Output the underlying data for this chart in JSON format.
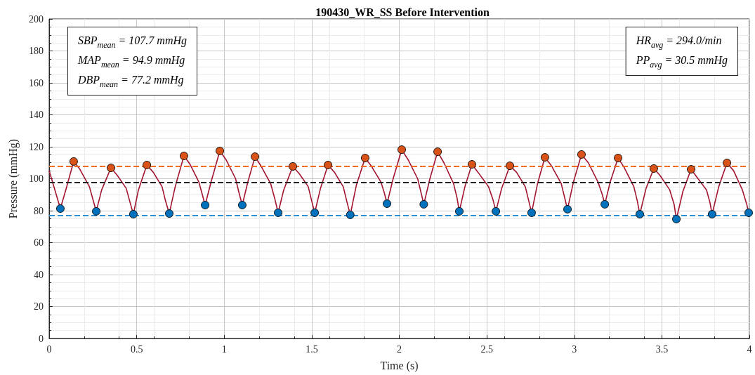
{
  "chart_data": {
    "type": "line",
    "title": "190430_WR_SS Before Intervention",
    "xlabel": "Time (s)",
    "ylabel": "Pressure (mmHg)",
    "xlim": [
      0,
      4
    ],
    "xticks": [
      0,
      0.5,
      1,
      1.5,
      2,
      2.5,
      3,
      3.5,
      4
    ],
    "ylim": [
      0,
      200
    ],
    "yticks": [
      0,
      20,
      40,
      60,
      80,
      100,
      120,
      140,
      160,
      180,
      200
    ],
    "grid": true,
    "series": [
      {
        "color": "#a2142f",
        "marker": "none",
        "x": [
          0,
          0.03,
          0.064,
          0.095,
          0.14,
          0.175,
          0.23,
          0.25,
          0.269,
          0.3,
          0.353,
          0.39,
          0.44,
          0.46,
          0.481,
          0.51,
          0.558,
          0.595,
          0.645,
          0.665,
          0.686,
          0.72,
          0.77,
          0.805,
          0.855,
          0.875,
          0.891,
          0.925,
          0.975,
          1.01,
          1.065,
          1.085,
          1.103,
          1.135,
          1.176,
          1.21,
          1.265,
          1.29,
          1.308,
          1.34,
          1.392,
          1.43,
          1.48,
          1.5,
          1.517,
          1.55,
          1.593,
          1.63,
          1.68,
          1.7,
          1.72,
          1.755,
          1.805,
          1.84,
          1.895,
          1.915,
          1.93,
          1.965,
          2.014,
          2.05,
          2.105,
          2.125,
          2.14,
          2.175,
          2.219,
          2.255,
          2.31,
          2.33,
          2.343,
          2.375,
          2.415,
          2.45,
          2.51,
          2.535,
          2.552,
          2.585,
          2.632,
          2.67,
          2.72,
          2.74,
          2.756,
          2.79,
          2.832,
          2.87,
          2.925,
          2.945,
          2.961,
          2.995,
          3.041,
          3.08,
          3.135,
          3.16,
          3.174,
          3.205,
          3.25,
          3.285,
          3.34,
          3.36,
          3.374,
          3.41,
          3.454,
          3.49,
          3.545,
          3.57,
          3.583,
          3.62,
          3.667,
          3.7,
          3.755,
          3.775,
          3.787,
          3.825,
          3.872,
          3.91,
          3.96,
          3.985,
          3.996
        ],
        "values": [
          105,
          94,
          81.3,
          93,
          110.8,
          106,
          95,
          87,
          79.6,
          93,
          106.8,
          102,
          94,
          86,
          77.8,
          93,
          108.6,
          104,
          95,
          86,
          78.2,
          95,
          114.3,
          109,
          98,
          90,
          83.5,
          98,
          117.4,
          112,
          100,
          91,
          83.5,
          98,
          113.8,
          108,
          97,
          87,
          78.7,
          93,
          107.7,
          103,
          95,
          86,
          78.7,
          94,
          108.6,
          104,
          95,
          86,
          77.4,
          96,
          113,
          108,
          98,
          91,
          84.4,
          100,
          118.2,
          112,
          100,
          91,
          84,
          100,
          116.9,
          110,
          97,
          88,
          79.6,
          95,
          109,
          104,
          95,
          87,
          79.6,
          94,
          108.1,
          104,
          95,
          86,
          78.7,
          97,
          113.4,
          108,
          97,
          88,
          80.9,
          98,
          115.2,
          110,
          98,
          90,
          84,
          98,
          113,
          107,
          95,
          86,
          77.8,
          94,
          106.4,
          102,
          93,
          84,
          74.7,
          92,
          105.9,
          101,
          93,
          85,
          77.8,
          95,
          109.9,
          105,
          93,
          84,
          78.7
        ]
      },
      {
        "type": "scatter",
        "color": "#d95319",
        "marker": "circle",
        "x": [
          0.14,
          0.353,
          0.558,
          0.77,
          0.975,
          1.176,
          1.392,
          1.593,
          1.805,
          2.014,
          2.219,
          2.415,
          2.632,
          2.832,
          3.041,
          3.25,
          3.454,
          3.667,
          3.872
        ],
        "values": [
          110.8,
          106.8,
          108.6,
          114.3,
          117.4,
          113.8,
          107.7,
          108.6,
          113,
          118.2,
          116.9,
          109,
          108.1,
          113.4,
          115.2,
          113,
          106.4,
          105.9,
          109.9
        ]
      },
      {
        "type": "scatter",
        "color": "#0072bd",
        "marker": "circle",
        "x": [
          0.064,
          0.269,
          0.481,
          0.686,
          0.891,
          1.103,
          1.308,
          1.517,
          1.72,
          1.93,
          2.14,
          2.343,
          2.552,
          2.756,
          2.961,
          3.174,
          3.374,
          3.583,
          3.787,
          3.996
        ],
        "values": [
          81.3,
          79.6,
          77.8,
          78.2,
          83.5,
          83.5,
          78.7,
          78.7,
          77.4,
          84.4,
          84,
          79.6,
          79.6,
          78.7,
          80.9,
          84,
          77.8,
          74.7,
          77.8,
          78.7
        ]
      }
    ],
    "ref_lines": [
      {
        "axis": "y",
        "value": 107.7,
        "color": "#f26b21",
        "line_style": "dashed"
      },
      {
        "axis": "y",
        "value": 97.5,
        "color": "#222222",
        "line_style": "dashed"
      },
      {
        "axis": "y",
        "value": 77.2,
        "color": "#2b8fd6",
        "line_style": "dashed"
      }
    ],
    "annotations": [
      "SBP$_{mean}$ = 107.7 mmHg\nMAP$_{mean}$ = 94.9 mmHg\nDBP$_{mean}$ = 77.2 mmHg",
      "HR$_{avg}$ = 294.0/min\nPP$_{avg}$ = 30.5 mmHg"
    ]
  }
}
